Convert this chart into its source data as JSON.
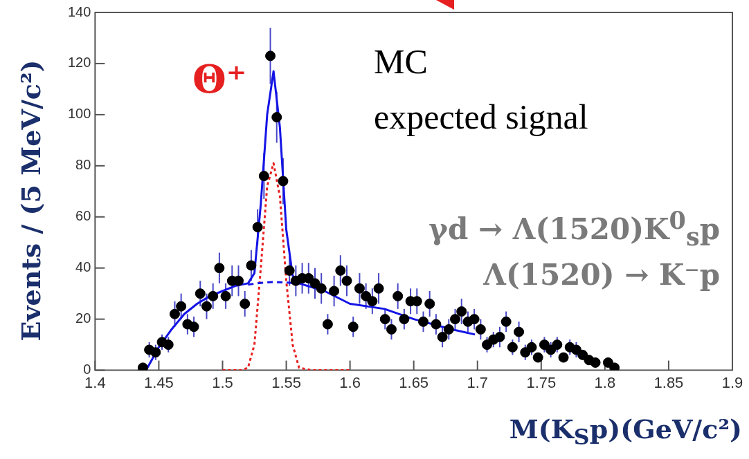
{
  "chart_data": {
    "type": "scatter",
    "xlabel": "M(K$_{S}$p)(GeV/c²)",
    "ylabel": "Events / (5 MeV/c²)",
    "xlim": [
      1.4,
      1.9
    ],
    "xticks": [
      1.4,
      1.45,
      1.5,
      1.55,
      1.6,
      1.65,
      1.7,
      1.75,
      1.8,
      1.85,
      1.9
    ],
    "ylim": [
      0,
      140
    ],
    "yticks": [
      0,
      20,
      40,
      60,
      80,
      100,
      120,
      140
    ],
    "series": [
      {
        "type": "scatter",
        "color": "#000000",
        "marker": "circle",
        "x": [
          1.4375,
          1.4425,
          1.4475,
          1.4525,
          1.4575,
          1.4625,
          1.4675,
          1.4725,
          1.4775,
          1.4825,
          1.4875,
          1.4925,
          1.4975,
          1.5025,
          1.5075,
          1.5125,
          1.5175,
          1.5225,
          1.5275,
          1.5325,
          1.5375,
          1.5425,
          1.5475,
          1.5525,
          1.5575,
          1.5625,
          1.5675,
          1.5725,
          1.5775,
          1.5825,
          1.5875,
          1.5925,
          1.5975,
          1.6025,
          1.6075,
          1.6125,
          1.6175,
          1.6225,
          1.6275,
          1.6325,
          1.6375,
          1.6425,
          1.6475,
          1.6525,
          1.6575,
          1.6625,
          1.6675,
          1.6725,
          1.6775,
          1.6825,
          1.6875,
          1.6925,
          1.6975,
          1.7025,
          1.7075,
          1.7125,
          1.7175,
          1.7225,
          1.7275,
          1.7325,
          1.7375,
          1.7425,
          1.7475,
          1.7525,
          1.7575,
          1.7625,
          1.7675,
          1.7725,
          1.7775,
          1.7825,
          1.7875,
          1.7925,
          1.8025,
          1.8075
        ],
        "values": [
          1,
          8,
          7,
          11,
          10,
          22,
          25,
          18,
          17,
          30,
          25,
          29,
          40,
          29,
          35,
          35,
          26,
          41,
          56,
          76,
          123,
          99,
          74,
          39,
          35,
          36,
          36,
          34,
          32,
          18,
          31,
          39,
          35,
          17,
          32,
          29,
          27,
          32,
          20,
          16,
          29,
          20,
          27,
          27,
          19,
          26,
          18,
          13,
          16,
          20,
          23,
          19,
          20,
          16,
          10,
          12,
          13,
          19,
          9,
          15,
          7,
          9,
          5,
          10,
          8,
          10,
          5,
          9,
          8,
          6,
          4,
          3,
          3,
          1
        ],
        "errors": [
          null,
          3,
          3,
          3,
          3,
          5,
          5,
          4,
          4,
          5,
          5,
          5,
          6,
          5,
          6,
          6,
          5,
          6,
          7,
          9,
          11,
          10,
          9,
          6,
          6,
          6,
          6,
          6,
          6,
          4,
          6,
          6,
          6,
          4,
          6,
          5,
          5,
          6,
          4,
          4,
          5,
          4,
          5,
          5,
          4,
          5,
          4,
          4,
          4,
          4,
          5,
          4,
          4,
          4,
          3,
          3,
          4,
          4,
          3,
          4,
          3,
          3,
          null,
          3,
          3,
          3,
          null,
          3,
          3,
          null,
          null,
          null,
          null,
          null
        ]
      },
      {
        "type": "line",
        "color": "#1414e6",
        "line_style": "solid",
        "x": [
          1.44,
          1.45,
          1.46,
          1.47,
          1.48,
          1.49,
          1.5,
          1.51,
          1.52,
          1.525,
          1.53,
          1.535,
          1.54,
          1.545,
          1.55,
          1.555,
          1.56,
          1.58,
          1.6,
          1.627,
          1.65,
          1.68,
          1.698
        ],
        "values": [
          0,
          9,
          16,
          22,
          26,
          29,
          31,
          33,
          34,
          38,
          65,
          100,
          117,
          95,
          55,
          37,
          34,
          31,
          26,
          24,
          20,
          16,
          14
        ]
      },
      {
        "type": "line",
        "color": "#1414e6",
        "line_style": "dashed",
        "x": [
          1.52,
          1.53,
          1.54,
          1.55,
          1.56
        ],
        "values": [
          33.5,
          34.2,
          34.5,
          34.3,
          34
        ]
      },
      {
        "type": "line",
        "color": "#e62020",
        "line_style": "dotted",
        "x": [
          1.5,
          1.515,
          1.52,
          1.525,
          1.53,
          1.535,
          1.54,
          1.545,
          1.55,
          1.555,
          1.56,
          1.57,
          1.6
        ],
        "values": [
          0,
          0,
          1,
          10,
          40,
          72,
          81,
          68,
          35,
          10,
          1,
          0,
          0
        ]
      }
    ],
    "annotations": [
      "Θ⁺",
      "MC",
      "expected signal",
      "γd → Λ(1520)K$^{0}$$_{s}$p",
      "Λ(1520) → K⁻p"
    ]
  }
}
